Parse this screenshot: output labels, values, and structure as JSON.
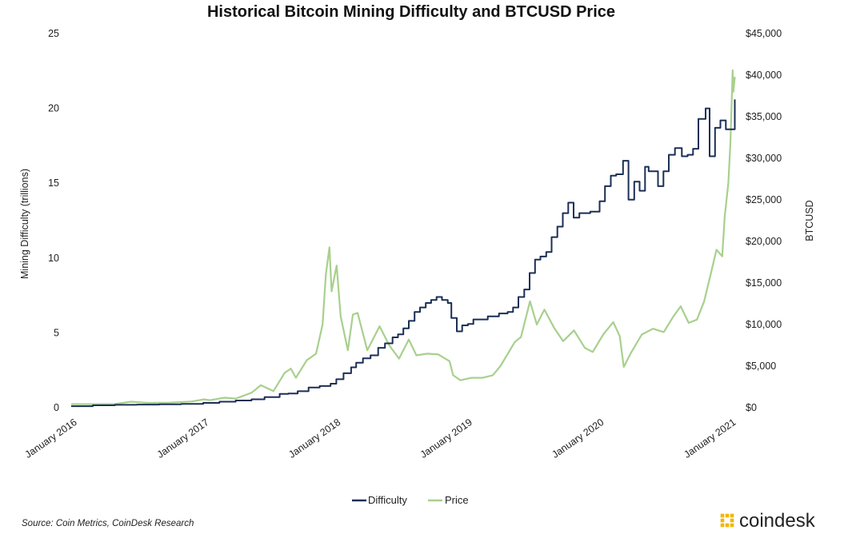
{
  "chart_data": {
    "type": "line",
    "title": "Historical Bitcoin Mining Difficulty and BTCUSD Price",
    "ylabel_left": "Mining Difficulty (trillions)",
    "ylabel_right": "BTCUSD",
    "xlim": [
      "2016-01-01",
      "2021-01-15"
    ],
    "ylim_left": [
      0,
      25
    ],
    "ylim_right": [
      0,
      45000
    ],
    "x_tick_labels": [
      "January 2016",
      "January 2017",
      "January 2018",
      "January 2019",
      "January 2020",
      "January 2021"
    ],
    "x_tick_dates": [
      "2016-01-01",
      "2017-01-01",
      "2018-01-01",
      "2019-01-01",
      "2020-01-01",
      "2021-01-01"
    ],
    "y_left_ticks": [
      "0",
      "5",
      "10",
      "15",
      "20",
      "25"
    ],
    "y_right_ticks": [
      "$0",
      "$5,000",
      "$10,000",
      "$15,000",
      "$20,000",
      "$25,000",
      "$30,000",
      "$35,000",
      "$40,000",
      "$45,000"
    ],
    "grid": false,
    "legend_position": "bottom-center",
    "series": [
      {
        "name": "Difficulty",
        "axis": "left",
        "color": "#1b2f55",
        "style": "step",
        "points": [
          [
            "2016-01-01",
            0.1
          ],
          [
            "2016-03-01",
            0.16
          ],
          [
            "2016-05-01",
            0.19
          ],
          [
            "2016-07-01",
            0.21
          ],
          [
            "2016-09-01",
            0.23
          ],
          [
            "2016-11-01",
            0.25
          ],
          [
            "2017-01-01",
            0.32
          ],
          [
            "2017-02-15",
            0.4
          ],
          [
            "2017-04-01",
            0.48
          ],
          [
            "2017-05-15",
            0.56
          ],
          [
            "2017-06-20",
            0.71
          ],
          [
            "2017-08-01",
            0.92
          ],
          [
            "2017-08-25",
            0.95
          ],
          [
            "2017-09-20",
            1.1
          ],
          [
            "2017-10-20",
            1.35
          ],
          [
            "2017-11-20",
            1.45
          ],
          [
            "2017-12-20",
            1.6
          ],
          [
            "2018-01-05",
            1.9
          ],
          [
            "2018-01-25",
            2.3
          ],
          [
            "2018-02-15",
            2.7
          ],
          [
            "2018-03-01",
            3.0
          ],
          [
            "2018-03-20",
            3.3
          ],
          [
            "2018-04-10",
            3.5
          ],
          [
            "2018-05-01",
            4.0
          ],
          [
            "2018-05-20",
            4.3
          ],
          [
            "2018-06-10",
            4.7
          ],
          [
            "2018-06-25",
            4.9
          ],
          [
            "2018-07-10",
            5.3
          ],
          [
            "2018-07-25",
            5.8
          ],
          [
            "2018-08-10",
            6.4
          ],
          [
            "2018-08-25",
            6.7
          ],
          [
            "2018-09-10",
            7.0
          ],
          [
            "2018-09-25",
            7.2
          ],
          [
            "2018-10-10",
            7.4
          ],
          [
            "2018-10-25",
            7.2
          ],
          [
            "2018-11-10",
            7.0
          ],
          [
            "2018-11-20",
            6.0
          ],
          [
            "2018-12-05",
            5.1
          ],
          [
            "2018-12-20",
            5.5
          ],
          [
            "2019-01-05",
            5.6
          ],
          [
            "2019-01-20",
            5.9
          ],
          [
            "2019-03-01",
            6.1
          ],
          [
            "2019-04-01",
            6.3
          ],
          [
            "2019-04-25",
            6.4
          ],
          [
            "2019-05-10",
            6.7
          ],
          [
            "2019-05-25",
            7.4
          ],
          [
            "2019-06-10",
            7.9
          ],
          [
            "2019-06-25",
            9.0
          ],
          [
            "2019-07-10",
            9.9
          ],
          [
            "2019-07-25",
            10.1
          ],
          [
            "2019-08-10",
            10.4
          ],
          [
            "2019-08-25",
            11.4
          ],
          [
            "2019-09-10",
            12.1
          ],
          [
            "2019-09-25",
            13.0
          ],
          [
            "2019-10-10",
            13.7
          ],
          [
            "2019-10-25",
            12.7
          ],
          [
            "2019-11-10",
            13.0
          ],
          [
            "2019-12-10",
            13.1
          ],
          [
            "2020-01-05",
            13.8
          ],
          [
            "2020-01-20",
            14.8
          ],
          [
            "2020-02-05",
            15.5
          ],
          [
            "2020-02-20",
            15.6
          ],
          [
            "2020-03-10",
            16.5
          ],
          [
            "2020-03-25",
            13.9
          ],
          [
            "2020-04-10",
            15.1
          ],
          [
            "2020-04-25",
            14.5
          ],
          [
            "2020-05-10",
            16.1
          ],
          [
            "2020-05-20",
            15.8
          ],
          [
            "2020-06-05",
            15.8
          ],
          [
            "2020-06-15",
            14.8
          ],
          [
            "2020-06-30",
            15.8
          ],
          [
            "2020-07-15",
            16.9
          ],
          [
            "2020-08-01",
            17.35
          ],
          [
            "2020-08-20",
            16.8
          ],
          [
            "2020-09-05",
            16.9
          ],
          [
            "2020-09-20",
            17.3
          ],
          [
            "2020-10-05",
            19.3
          ],
          [
            "2020-10-25",
            20.0
          ],
          [
            "2020-11-05",
            16.8
          ],
          [
            "2020-11-20",
            18.7
          ],
          [
            "2020-12-05",
            19.2
          ],
          [
            "2020-12-20",
            18.6
          ],
          [
            "2021-01-10",
            18.6
          ],
          [
            "2021-01-14",
            20.6
          ]
        ]
      },
      {
        "name": "Price",
        "axis": "right",
        "color": "#a8d08d",
        "style": "line",
        "points": [
          [
            "2016-01-01",
            430
          ],
          [
            "2016-03-01",
            420
          ],
          [
            "2016-05-01",
            450
          ],
          [
            "2016-06-15",
            720
          ],
          [
            "2016-08-01",
            580
          ],
          [
            "2016-10-01",
            610
          ],
          [
            "2016-12-01",
            750
          ],
          [
            "2017-01-03",
            1000
          ],
          [
            "2017-01-20",
            900
          ],
          [
            "2017-03-01",
            1200
          ],
          [
            "2017-04-01",
            1100
          ],
          [
            "2017-05-15",
            1800
          ],
          [
            "2017-06-10",
            2700
          ],
          [
            "2017-07-15",
            2000
          ],
          [
            "2017-08-15",
            4200
          ],
          [
            "2017-09-01",
            4700
          ],
          [
            "2017-09-15",
            3600
          ],
          [
            "2017-10-15",
            5700
          ],
          [
            "2017-11-10",
            6500
          ],
          [
            "2017-11-28",
            10000
          ],
          [
            "2017-12-07",
            16000
          ],
          [
            "2017-12-17",
            19300
          ],
          [
            "2017-12-23",
            14000
          ],
          [
            "2018-01-06",
            17100
          ],
          [
            "2018-01-17",
            11000
          ],
          [
            "2018-02-06",
            6900
          ],
          [
            "2018-02-20",
            11200
          ],
          [
            "2018-03-05",
            11400
          ],
          [
            "2018-04-01",
            6900
          ],
          [
            "2018-05-05",
            9800
          ],
          [
            "2018-06-01",
            7500
          ],
          [
            "2018-06-28",
            5900
          ],
          [
            "2018-07-25",
            8200
          ],
          [
            "2018-08-15",
            6300
          ],
          [
            "2018-09-15",
            6500
          ],
          [
            "2018-10-15",
            6400
          ],
          [
            "2018-11-15",
            5600
          ],
          [
            "2018-11-25",
            3900
          ],
          [
            "2018-12-15",
            3300
          ],
          [
            "2019-01-15",
            3600
          ],
          [
            "2019-02-15",
            3600
          ],
          [
            "2019-03-15",
            3900
          ],
          [
            "2019-04-05",
            5000
          ],
          [
            "2019-05-15",
            7900
          ],
          [
            "2019-06-01",
            8500
          ],
          [
            "2019-06-26",
            12800
          ],
          [
            "2019-07-15",
            10000
          ],
          [
            "2019-08-05",
            11800
          ],
          [
            "2019-09-01",
            9600
          ],
          [
            "2019-09-26",
            8000
          ],
          [
            "2019-10-26",
            9300
          ],
          [
            "2019-11-25",
            7200
          ],
          [
            "2019-12-17",
            6700
          ],
          [
            "2020-01-15",
            8800
          ],
          [
            "2020-02-12",
            10300
          ],
          [
            "2020-03-01",
            8600
          ],
          [
            "2020-03-12",
            4900
          ],
          [
            "2020-04-01",
            6600
          ],
          [
            "2020-05-01",
            8800
          ],
          [
            "2020-06-01",
            9500
          ],
          [
            "2020-07-01",
            9100
          ],
          [
            "2020-07-28",
            11000
          ],
          [
            "2020-08-17",
            12200
          ],
          [
            "2020-09-08",
            10200
          ],
          [
            "2020-10-01",
            10600
          ],
          [
            "2020-10-21",
            12800
          ],
          [
            "2020-11-05",
            15500
          ],
          [
            "2020-11-24",
            19000
          ],
          [
            "2020-12-10",
            18200
          ],
          [
            "2020-12-17",
            23000
          ],
          [
            "2020-12-27",
            27000
          ],
          [
            "2021-01-02",
            32000
          ],
          [
            "2021-01-08",
            40600
          ],
          [
            "2021-01-10",
            38000
          ],
          [
            "2021-01-14",
            39800
          ]
        ]
      }
    ]
  },
  "source": "Source: Coin Metrics, CoinDesk Research",
  "brand": {
    "name": "coindesk",
    "logo_color": "#f2b705"
  }
}
